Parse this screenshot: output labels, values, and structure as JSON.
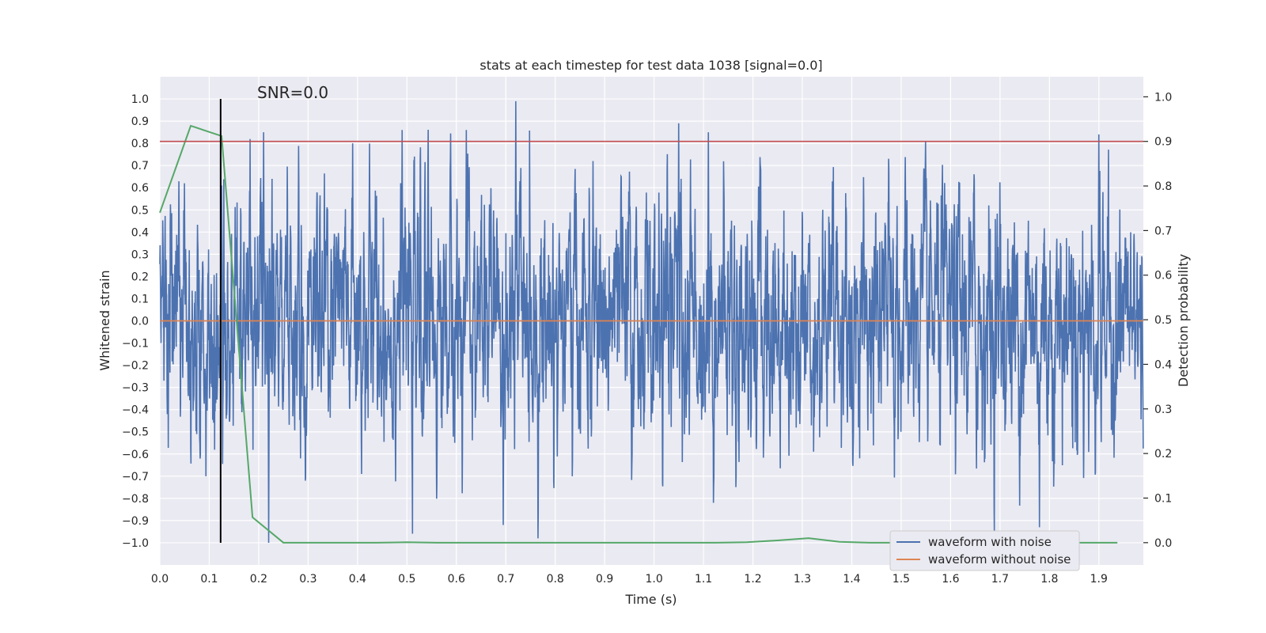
{
  "chart_data": {
    "type": "line",
    "title": "stats at each timestep for test data 1038 [signal=0.0]",
    "xlabel": "Time (s)",
    "ylabel_left": "Whitened strain",
    "ylabel_right": "Detection probability",
    "xlim": [
      0.0,
      1.99
    ],
    "ylim_left": [
      -1.1,
      1.1
    ],
    "ylim_right": [
      -0.05,
      1.045
    ],
    "xticks": [
      0.0,
      0.1,
      0.2,
      0.3,
      0.4,
      0.5,
      0.6,
      0.7,
      0.8,
      0.9,
      1.0,
      1.1,
      1.2,
      1.3,
      1.4,
      1.5,
      1.6,
      1.7,
      1.8,
      1.9
    ],
    "xtick_labels": [
      "0.0",
      "0.1",
      "0.2",
      "0.3",
      "0.4",
      "0.5",
      "0.6",
      "0.7",
      "0.8",
      "0.9",
      "1.0",
      "1.1",
      "1.2",
      "1.3",
      "1.4",
      "1.5",
      "1.6",
      "1.7",
      "1.8",
      "1.9"
    ],
    "yticks_left": [
      1.0,
      0.9,
      0.8,
      0.7,
      0.6,
      0.5,
      0.4,
      0.3,
      0.2,
      0.1,
      0.0,
      -0.1,
      -0.2,
      -0.3,
      -0.4,
      -0.5,
      -0.6,
      -0.7,
      -0.8,
      -0.9,
      -1.0
    ],
    "ytick_labels_left": [
      "1.0",
      "0.9",
      "0.8",
      "0.7",
      "0.6",
      "0.5",
      "0.4",
      "0.3",
      "0.2",
      "0.1",
      "0.0",
      "−0.1",
      "−0.2",
      "−0.3",
      "−0.4",
      "−0.5",
      "−0.6",
      "−0.7",
      "−0.8",
      "−0.9",
      "−1.0"
    ],
    "yticks_right": [
      1.0,
      0.9,
      0.8,
      0.7,
      0.6,
      0.5,
      0.4,
      0.3,
      0.2,
      0.1,
      0.0
    ],
    "ytick_labels_right": [
      "1.0",
      "0.9",
      "0.8",
      "0.7",
      "0.6",
      "0.5",
      "0.4",
      "0.3",
      "0.2",
      "0.1",
      "0.0"
    ],
    "annotation": "SNR=0.0",
    "threshold_probability": 0.9,
    "marker_time": 0.123,
    "series": [
      {
        "name": "waveform with noise",
        "axis": "left",
        "color": "#4c72b0",
        "kind": "noise",
        "sample_rate": 2048,
        "duration": 1.99,
        "approx_peaks": [
          {
            "t": 0.05,
            "v": 0.62
          },
          {
            "t": 0.125,
            "v": 0.61
          },
          {
            "t": 0.21,
            "v": 0.85
          },
          {
            "t": 0.22,
            "v": -1.0
          },
          {
            "t": 0.39,
            "v": 0.8
          },
          {
            "t": 0.49,
            "v": 0.86
          },
          {
            "t": 0.62,
            "v": 0.86
          },
          {
            "t": 0.72,
            "v": 0.99
          },
          {
            "t": 0.695,
            "v": -0.92
          },
          {
            "t": 1.05,
            "v": 0.89
          },
          {
            "t": 1.11,
            "v": 0.85
          },
          {
            "t": 1.78,
            "v": -0.93
          },
          {
            "t": 1.9,
            "v": 0.84
          }
        ]
      },
      {
        "name": "waveform without noise",
        "axis": "left",
        "color": "#dd8452",
        "x": [
          0.0,
          1.99
        ],
        "y": [
          0.0,
          0.0
        ]
      },
      {
        "name": "detection probability",
        "axis": "right",
        "color": "#55a868",
        "x": [
          0.0,
          0.0625,
          0.125,
          0.1875,
          0.25,
          0.3125,
          0.375,
          0.4375,
          0.5,
          0.5625,
          0.625,
          0.6875,
          0.75,
          0.8125,
          0.875,
          0.9375,
          1.0,
          1.0625,
          1.125,
          1.1875,
          1.25,
          1.3125,
          1.375,
          1.4375,
          1.5,
          1.5625,
          1.625,
          1.6875,
          1.75,
          1.8125,
          1.875,
          1.9375
        ],
        "y": [
          0.74,
          0.935,
          0.912,
          0.057,
          0.0,
          0.0,
          0.0,
          0.0,
          0.001,
          0.0,
          0.0,
          0.0,
          0.0,
          0.0,
          0.0,
          0.0,
          0.0,
          0.0,
          0.0,
          0.001,
          0.005,
          0.01,
          0.002,
          0.0,
          0.0,
          0.0,
          0.0,
          0.0,
          0.0,
          0.0,
          0.0,
          0.0
        ]
      }
    ],
    "legend": {
      "placement": "lower-right",
      "entries": [
        {
          "label": "waveform with noise",
          "color": "#4c72b0"
        },
        {
          "label": "waveform without noise",
          "color": "#dd8452"
        }
      ]
    },
    "colors": {
      "plot_background": "#eaeaf2",
      "grid": "#ffffff",
      "threshold": "#c44e52",
      "marker": "#000000",
      "text": "#262626"
    }
  }
}
